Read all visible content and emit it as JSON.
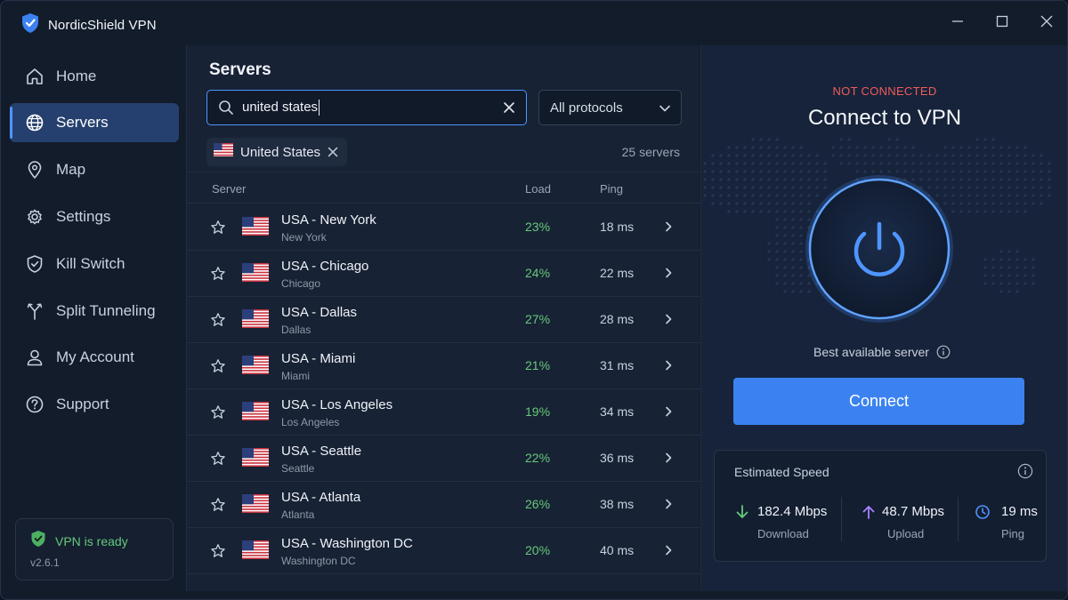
{
  "app": {
    "title": "NordicShield VPN",
    "version": "v2.6.1"
  },
  "sidebar": {
    "items": [
      {
        "label": "Home",
        "icon": "home-icon"
      },
      {
        "label": "Servers",
        "icon": "globe-icon",
        "active": true
      },
      {
        "label": "Map",
        "icon": "map-pin-icon"
      },
      {
        "label": "Settings",
        "icon": "gear-icon"
      },
      {
        "label": "Kill Switch",
        "icon": "shield-icon"
      },
      {
        "label": "Split Tunneling",
        "icon": "split-icon"
      },
      {
        "label": "My Account",
        "icon": "user-icon"
      },
      {
        "label": "Support",
        "icon": "help-icon"
      }
    ],
    "status": "VPN is ready"
  },
  "servers": {
    "title": "Servers",
    "search_value": "united states",
    "protocol": "All protocols",
    "filter_chip": "United States",
    "count": "25 servers",
    "columns": {
      "server": "Server",
      "load": "Load",
      "ping": "Ping"
    },
    "rows": [
      {
        "name": "USA - New York",
        "city": "New York",
        "load": "23%",
        "ping": "18 ms"
      },
      {
        "name": "USA - Chicago",
        "city": "Chicago",
        "load": "24%",
        "ping": "22 ms"
      },
      {
        "name": "USA - Dallas",
        "city": "Dallas",
        "load": "27%",
        "ping": "28 ms"
      },
      {
        "name": "USA - Miami",
        "city": "Miami",
        "load": "21%",
        "ping": "31 ms"
      },
      {
        "name": "USA - Los Angeles",
        "city": "Los Angeles",
        "load": "19%",
        "ping": "34 ms"
      },
      {
        "name": "USA - Seattle",
        "city": "Seattle",
        "load": "22%",
        "ping": "36 ms"
      },
      {
        "name": "USA - Atlanta",
        "city": "Atlanta",
        "load": "26%",
        "ping": "38 ms"
      },
      {
        "name": "USA - Washington DC",
        "city": "Washington DC",
        "load": "20%",
        "ping": "40 ms"
      }
    ]
  },
  "connection": {
    "status": "NOT CONNECTED",
    "title": "Connect to VPN",
    "best_server": "Best available server",
    "connect_label": "Connect"
  },
  "speed": {
    "title": "Estimated Speed",
    "download": {
      "value": "182.4 Mbps",
      "label": "Download"
    },
    "upload": {
      "value": "48.7 Mbps",
      "label": "Upload"
    },
    "ping": {
      "value": "19 ms",
      "label": "Ping"
    }
  },
  "colors": {
    "accent": "#3b82f0",
    "ok": "#66c97a",
    "error": "#ef5b5b",
    "upload": "#a883ff"
  }
}
